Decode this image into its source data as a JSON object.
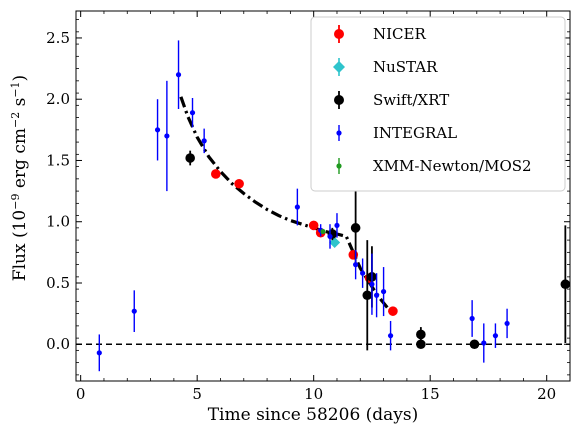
{
  "chart_data": {
    "type": "scatter",
    "xlabel": "Time since 58206 (days)",
    "ylabel": "Flux (10⁻⁹ erg cm⁻² s⁻¹)",
    "ylabel_parts": {
      "prefix": "Flux (10",
      "exp1": "−9",
      "mid1": " erg cm",
      "exp2": "−2",
      "mid2": " s",
      "exp3": "−1",
      "suffix": ")"
    },
    "xlim": [
      -0.2,
      21.0
    ],
    "ylim": [
      -0.3,
      2.72
    ],
    "xticks": [
      0,
      5,
      10,
      15,
      20
    ],
    "yticks": [
      0.0,
      0.5,
      1.0,
      1.5,
      2.0,
      2.5
    ],
    "ytick_labels": [
      "0.0",
      "0.5",
      "1.0",
      "1.5",
      "2.0",
      "2.5"
    ],
    "grid": false,
    "legend_position": "top-right",
    "zero_line": {
      "y": 0.0,
      "style": "dashed",
      "color": "#000000"
    },
    "series": [
      {
        "name": "NICER",
        "marker": "circle",
        "color": "#ff0000",
        "points": [
          {
            "x": 5.8,
            "y": 1.39,
            "err": 0.0
          },
          {
            "x": 6.8,
            "y": 1.31,
            "err": 0.0
          },
          {
            "x": 10.0,
            "y": 0.97,
            "err": 0.0
          },
          {
            "x": 10.3,
            "y": 0.91,
            "err": 0.0
          },
          {
            "x": 11.7,
            "y": 0.73,
            "err": 0.0
          },
          {
            "x": 12.4,
            "y": 0.54,
            "err": 0.0
          },
          {
            "x": 13.4,
            "y": 0.27,
            "err": 0.0
          }
        ]
      },
      {
        "name": "NuSTAR",
        "marker": "diamond",
        "color": "#2ec4cc",
        "points": [
          {
            "x": 10.9,
            "y": 0.83,
            "err": 0.02
          }
        ]
      },
      {
        "name": "Swift/XRT",
        "marker": "circle",
        "color": "#000000",
        "points": [
          {
            "x": 4.7,
            "y": 1.52,
            "err": 0.06
          },
          {
            "x": 10.8,
            "y": 0.9,
            "err": 0.05
          },
          {
            "x": 11.8,
            "y": 0.95,
            "err": 0.3
          },
          {
            "x": 12.3,
            "y": 0.4,
            "err": 0.45
          },
          {
            "x": 12.5,
            "y": 0.55,
            "err": 0.25
          },
          {
            "x": 14.6,
            "y": 0.0,
            "err": 0.0
          },
          {
            "x": 14.6,
            "y": 0.08,
            "err": 0.06
          },
          {
            "x": 16.9,
            "y": 0.0,
            "err": 0.0
          },
          {
            "x": 20.8,
            "y": 0.49,
            "err": 0.48
          }
        ]
      },
      {
        "name": "INTEGRAL",
        "marker": "small-circle",
        "color": "#0000ff",
        "points": [
          {
            "x": 0.8,
            "y": -0.07,
            "err": 0.15
          },
          {
            "x": 2.3,
            "y": 0.27,
            "err": 0.17
          },
          {
            "x": 3.3,
            "y": 1.75,
            "err": 0.25
          },
          {
            "x": 3.7,
            "y": 1.7,
            "err": 0.45
          },
          {
            "x": 4.2,
            "y": 2.2,
            "err": 0.28
          },
          {
            "x": 4.8,
            "y": 1.89,
            "err": 0.12
          },
          {
            "x": 5.3,
            "y": 1.66,
            "err": 0.1
          },
          {
            "x": 9.3,
            "y": 1.12,
            "err": 0.15
          },
          {
            "x": 10.3,
            "y": 0.93,
            "err": 0.05
          },
          {
            "x": 10.7,
            "y": 0.88,
            "err": 0.1
          },
          {
            "x": 11.0,
            "y": 0.97,
            "err": 0.1
          },
          {
            "x": 11.8,
            "y": 0.65,
            "err": 0.12
          },
          {
            "x": 12.1,
            "y": 0.58,
            "err": 0.12
          },
          {
            "x": 12.5,
            "y": 0.49,
            "err": 0.25
          },
          {
            "x": 12.7,
            "y": 0.4,
            "err": 0.18
          },
          {
            "x": 13.0,
            "y": 0.43,
            "err": 0.2
          },
          {
            "x": 13.3,
            "y": 0.07,
            "err": 0.12
          },
          {
            "x": 16.8,
            "y": 0.21,
            "err": 0.15
          },
          {
            "x": 17.3,
            "y": 0.01,
            "err": 0.16
          },
          {
            "x": 17.8,
            "y": 0.07,
            "err": 0.1
          },
          {
            "x": 18.3,
            "y": 0.17,
            "err": 0.12
          }
        ]
      },
      {
        "name": "XMM-Newton/MOS2",
        "marker": "small-circle",
        "color": "#1f9a1f",
        "points": [
          {
            "x": 10.4,
            "y": 0.92,
            "err": 0.0
          }
        ]
      }
    ],
    "model_curve": {
      "style": "dash-dot",
      "color": "#000000",
      "x": [
        4.3,
        4.6,
        5.0,
        5.5,
        6.0,
        6.5,
        7.0,
        7.5,
        8.0,
        8.5,
        9.0,
        9.5,
        10.0,
        10.5,
        11.0,
        11.4,
        11.7,
        12.0,
        12.3,
        12.6,
        12.9,
        13.2,
        13.4
      ],
      "y": [
        2.02,
        1.86,
        1.69,
        1.53,
        1.41,
        1.31,
        1.23,
        1.16,
        1.1,
        1.05,
        1.01,
        0.98,
        0.95,
        0.92,
        0.9,
        0.88,
        0.75,
        0.62,
        0.53,
        0.44,
        0.36,
        0.29,
        0.23
      ]
    }
  }
}
